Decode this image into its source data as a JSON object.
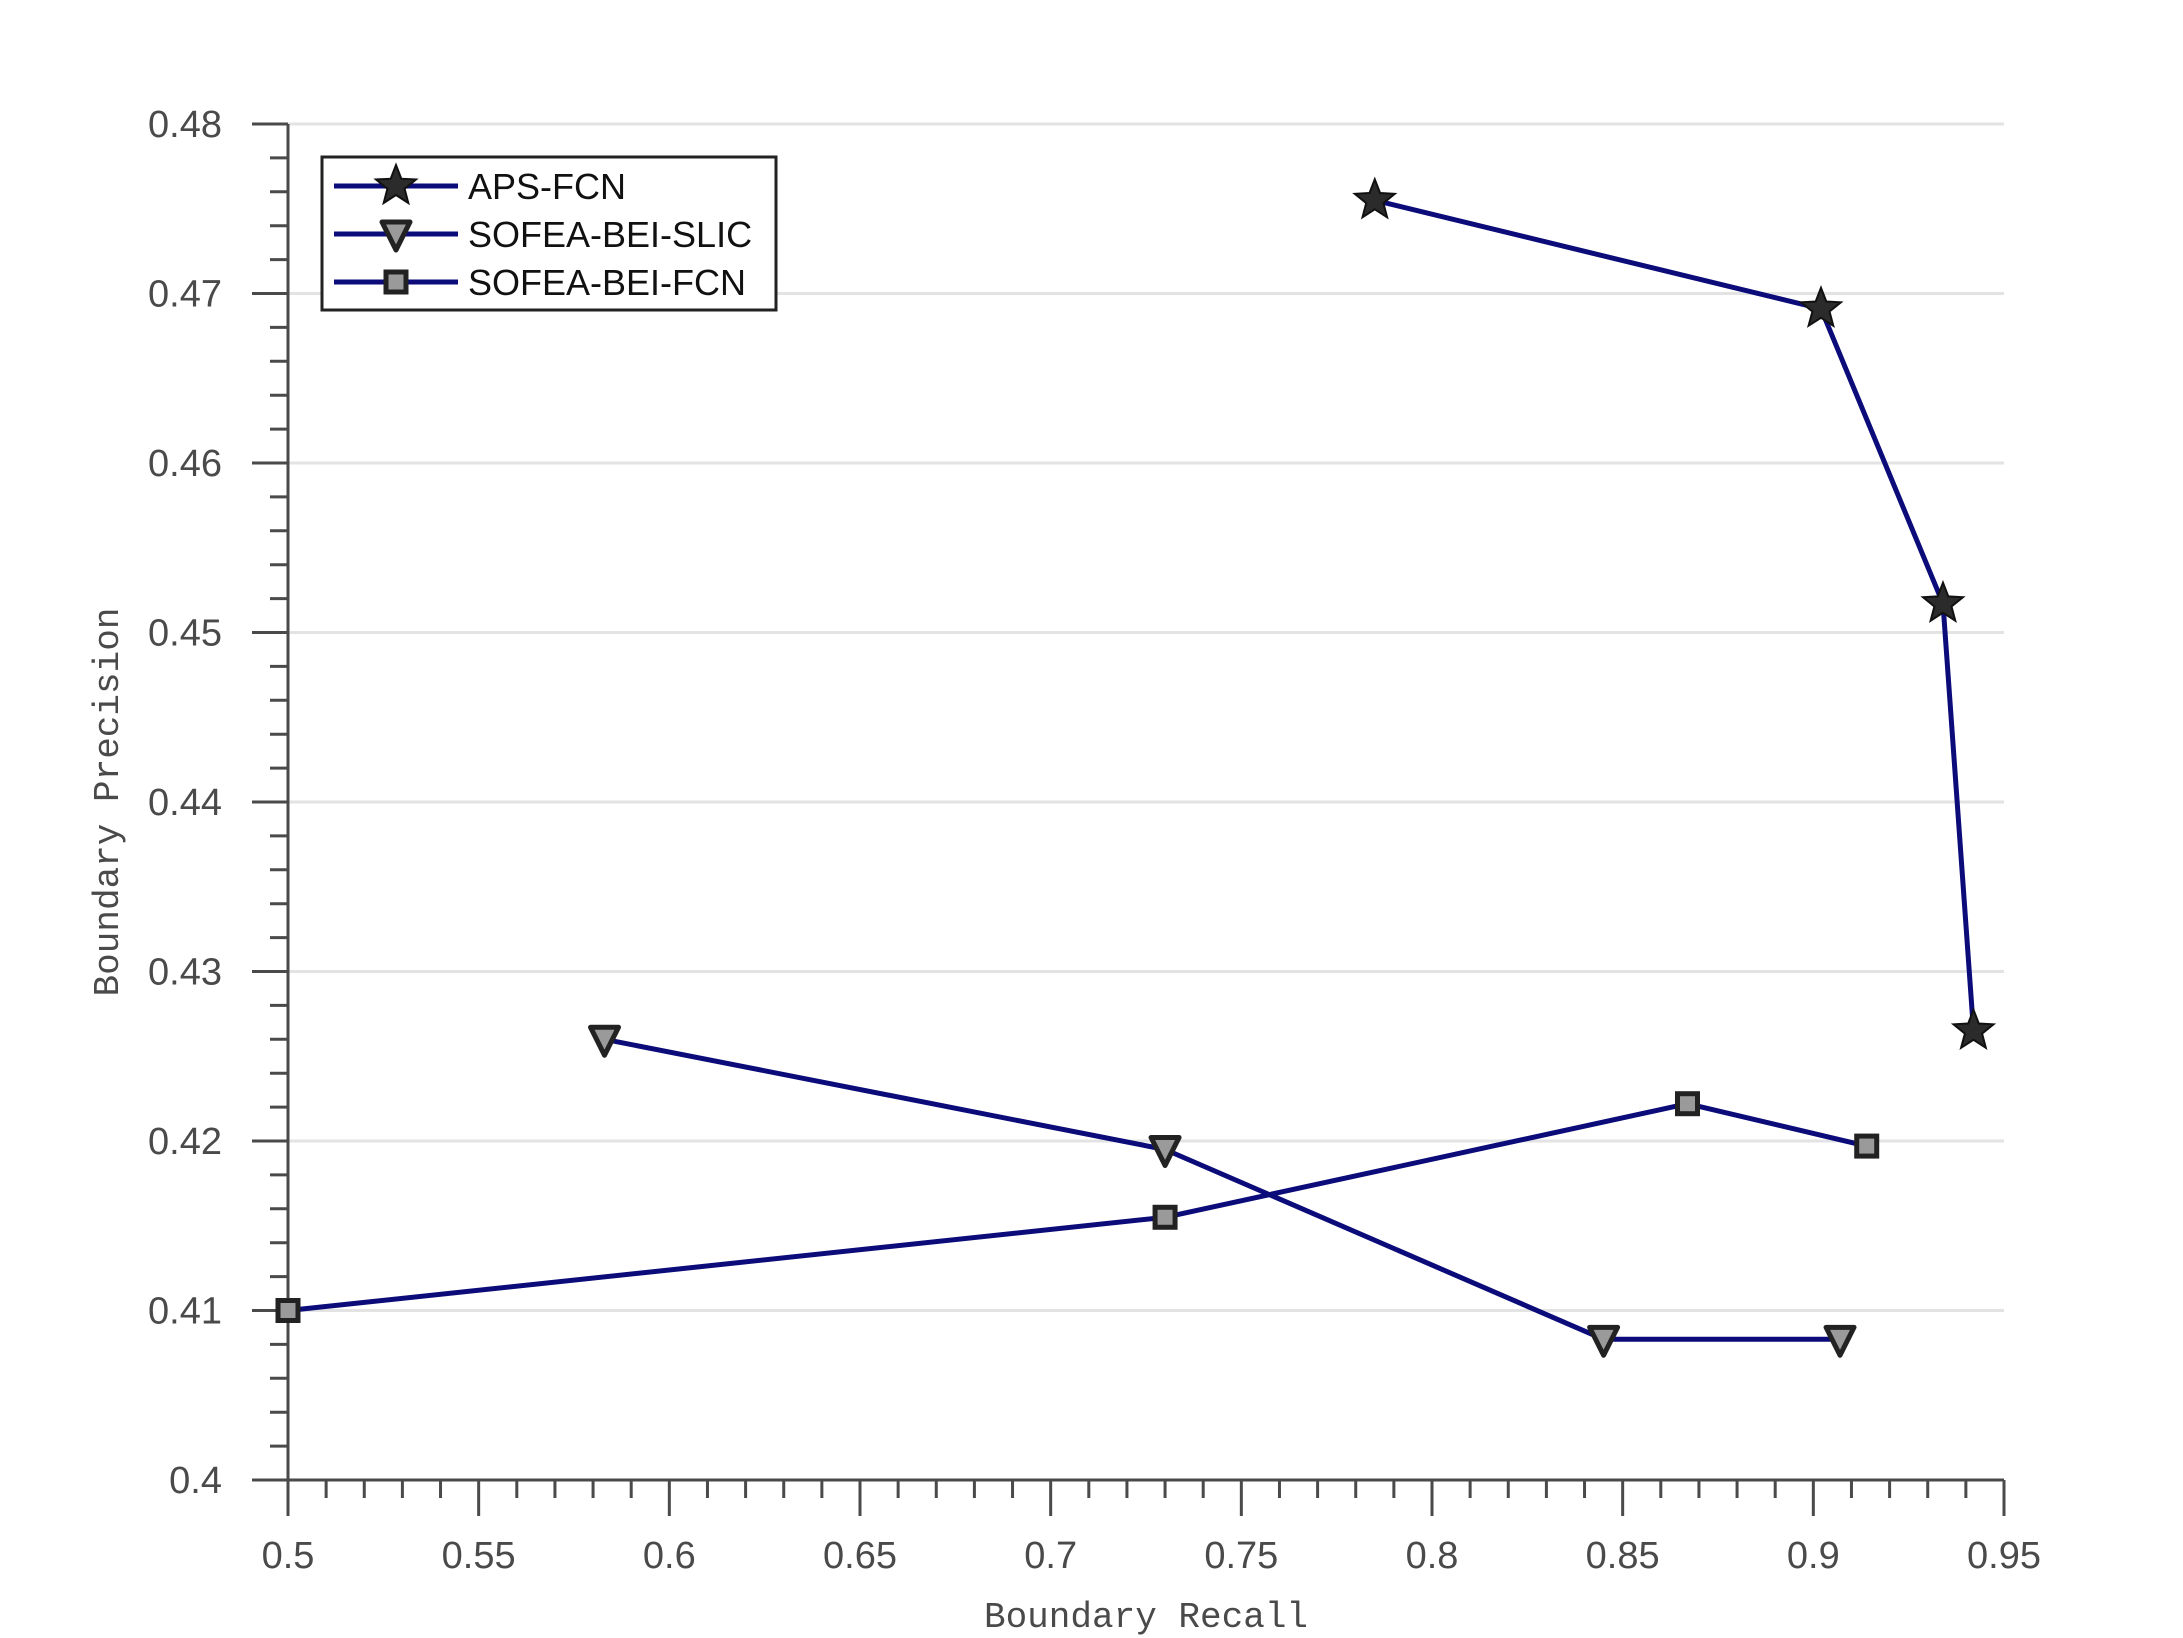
{
  "chart_data": {
    "type": "line",
    "title": "",
    "xlabel": "Boundary Recall",
    "ylabel": "Boundary Precision",
    "xlim": [
      0.5,
      0.95
    ],
    "ylim": [
      0.4,
      0.48
    ],
    "x_ticks": [
      "0.5",
      "0.55",
      "0.6",
      "0.65",
      "0.7",
      "0.75",
      "0.8",
      "0.85",
      "0.9",
      "0.95"
    ],
    "y_ticks": [
      "0.4",
      "0.41",
      "0.42",
      "0.43",
      "0.44",
      "0.45",
      "0.46",
      "0.47",
      "0.48"
    ],
    "grid": "horizontal",
    "legend_position": "top-left",
    "line_color": "#0b0b7a",
    "marker_colors": {
      "star": "#2b2b2b",
      "triangle": "#9a9a9a",
      "square": "#9a9a9a"
    },
    "series": [
      {
        "name": "APS-FCN",
        "marker": "star",
        "x": [
          0.785,
          0.902,
          0.934,
          0.942
        ],
        "y": [
          0.4755,
          0.4691,
          0.4517,
          0.4265
        ]
      },
      {
        "name": "SOFEA-BEI-SLIC",
        "marker": "triangle",
        "x": [
          0.583,
          0.73,
          0.845,
          0.907
        ],
        "y": [
          0.426,
          0.4195,
          0.4083,
          0.4083
        ]
      },
      {
        "name": "SOFEA-BEI-FCN",
        "marker": "square",
        "x": [
          0.5,
          0.73,
          0.867,
          0.914
        ],
        "y": [
          0.41,
          0.4155,
          0.4222,
          0.4197
        ]
      }
    ]
  }
}
